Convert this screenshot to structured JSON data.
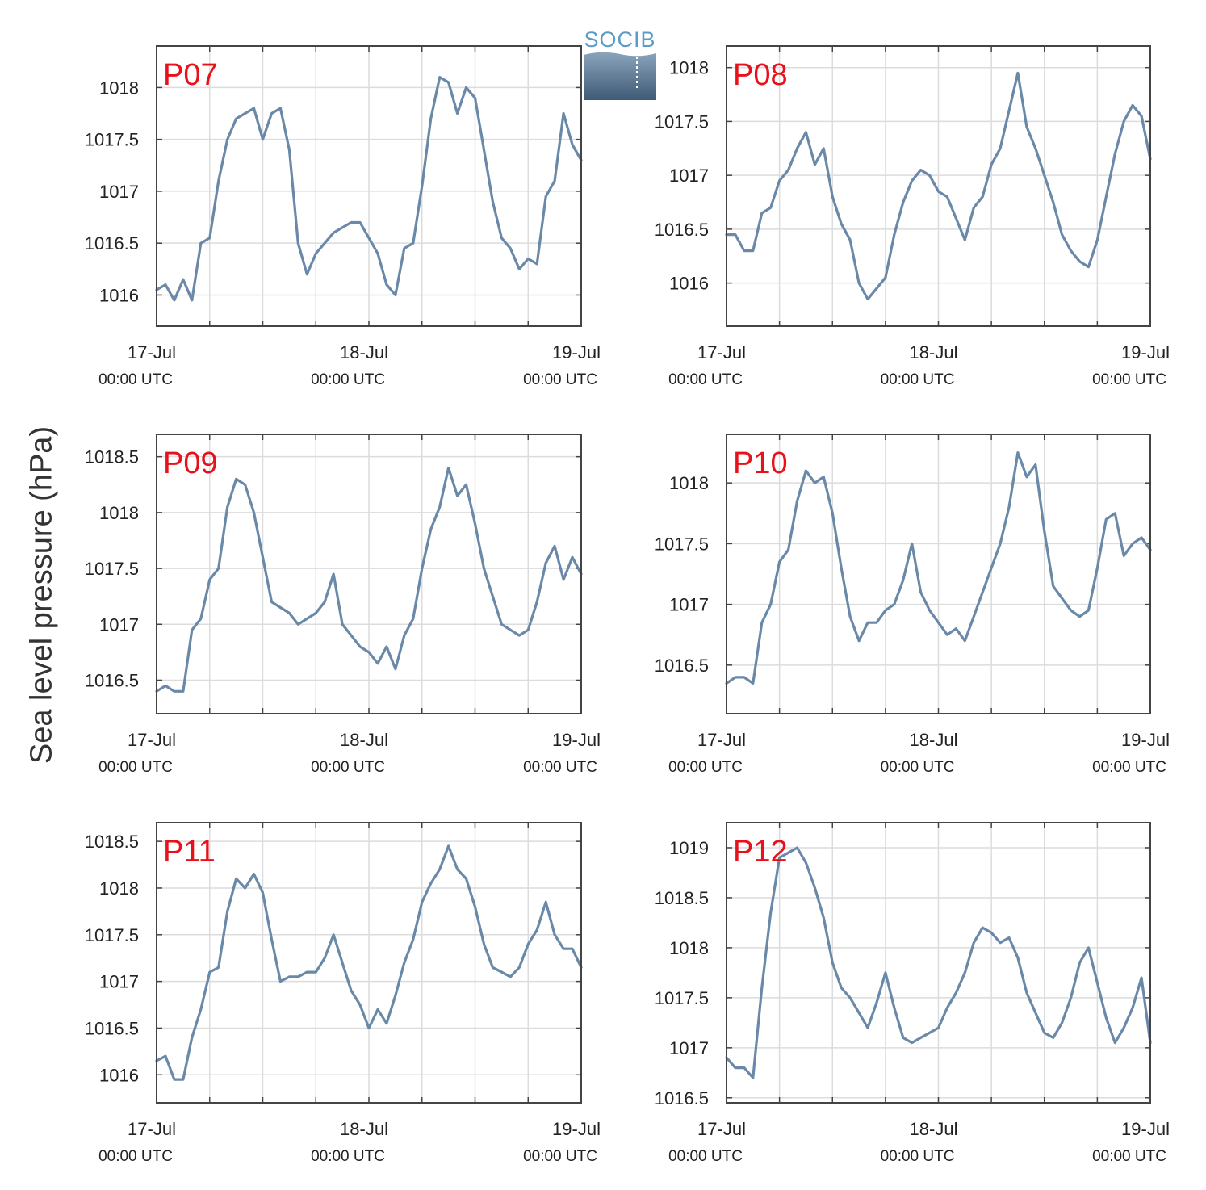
{
  "ylabel": "Sea level pressure (hPa)",
  "logo": {
    "text": "SOCIB"
  },
  "colors": {
    "line": "#6a89a8",
    "title": "#e8101a",
    "grid": "#dcdcdc",
    "frame": "#444444"
  },
  "chart_data": [
    {
      "type": "line",
      "title": "P07",
      "x_tick_labels": [
        [
          "17-Jul",
          "00:00 UTC"
        ],
        [
          "18-Jul",
          "00:00 UTC"
        ],
        [
          "19-Jul",
          "00:00 UTC"
        ]
      ],
      "x_hours": [
        0,
        1,
        2,
        3,
        4,
        5,
        6,
        7,
        8,
        9,
        10,
        11,
        12,
        13,
        14,
        15,
        16,
        17,
        18,
        19,
        20,
        21,
        22,
        23,
        24,
        25,
        26,
        27,
        28,
        29,
        30,
        31,
        32,
        33,
        34,
        35,
        36,
        37,
        38,
        39,
        40,
        41,
        42,
        43,
        44,
        45,
        46,
        47,
        48
      ],
      "ylim": [
        1015.7,
        1018.4
      ],
      "yticks": [
        1016,
        1016.5,
        1017,
        1017.5,
        1018
      ],
      "ytick_labels": [
        "1016",
        "1016.5",
        "1017",
        "1017.5",
        "1018"
      ],
      "series": [
        {
          "values": [
            1016.05,
            1016.1,
            1015.95,
            1016.15,
            1015.95,
            1016.5,
            1016.55,
            1017.1,
            1017.5,
            1017.7,
            1017.75,
            1017.8,
            1017.5,
            1017.75,
            1017.8,
            1017.4,
            1016.5,
            1016.2,
            1016.4,
            1016.5,
            1016.6,
            1016.65,
            1016.7,
            1016.7,
            1016.55,
            1016.4,
            1016.1,
            1016.0,
            1016.45,
            1016.5,
            1017.05,
            1017.7,
            1018.1,
            1018.05,
            1017.75,
            1018.0,
            1017.9,
            1017.4,
            1016.9,
            1016.55,
            1016.45,
            1016.25,
            1016.35,
            1016.3,
            1016.95,
            1017.1,
            1017.75,
            1017.45,
            1017.3
          ]
        }
      ]
    },
    {
      "type": "line",
      "title": "P08",
      "x_tick_labels": [
        [
          "17-Jul",
          "00:00 UTC"
        ],
        [
          "18-Jul",
          "00:00 UTC"
        ],
        [
          "19-Jul",
          "00:00 UTC"
        ]
      ],
      "x_hours": [
        0,
        1,
        2,
        3,
        4,
        5,
        6,
        7,
        8,
        9,
        10,
        11,
        12,
        13,
        14,
        15,
        16,
        17,
        18,
        19,
        20,
        21,
        22,
        23,
        24,
        25,
        26,
        27,
        28,
        29,
        30,
        31,
        32,
        33,
        34,
        35,
        36,
        37,
        38,
        39,
        40,
        41,
        42,
        43,
        44,
        45,
        46,
        47,
        48
      ],
      "ylim": [
        1015.6,
        1018.2
      ],
      "yticks": [
        1016,
        1016.5,
        1017,
        1017.5,
        1018
      ],
      "ytick_labels": [
        "1016",
        "1016.5",
        "1017",
        "1017.5",
        "1018"
      ],
      "series": [
        {
          "values": [
            1016.45,
            1016.45,
            1016.3,
            1016.3,
            1016.65,
            1016.7,
            1016.95,
            1017.05,
            1017.25,
            1017.4,
            1017.1,
            1017.25,
            1016.8,
            1016.55,
            1016.4,
            1016.0,
            1015.85,
            1015.95,
            1016.05,
            1016.45,
            1016.75,
            1016.95,
            1017.05,
            1017.0,
            1016.85,
            1016.8,
            1016.6,
            1016.4,
            1016.7,
            1016.8,
            1017.1,
            1017.25,
            1017.6,
            1017.95,
            1017.45,
            1017.25,
            1017.0,
            1016.75,
            1016.45,
            1016.3,
            1016.2,
            1016.15,
            1016.4,
            1016.8,
            1017.2,
            1017.5,
            1017.65,
            1017.55,
            1017.15
          ]
        }
      ]
    },
    {
      "type": "line",
      "title": "P09",
      "x_tick_labels": [
        [
          "17-Jul",
          "00:00 UTC"
        ],
        [
          "18-Jul",
          "00:00 UTC"
        ],
        [
          "19-Jul",
          "00:00 UTC"
        ]
      ],
      "x_hours": [
        0,
        1,
        2,
        3,
        4,
        5,
        6,
        7,
        8,
        9,
        10,
        11,
        12,
        13,
        14,
        15,
        16,
        17,
        18,
        19,
        20,
        21,
        22,
        23,
        24,
        25,
        26,
        27,
        28,
        29,
        30,
        31,
        32,
        33,
        34,
        35,
        36,
        37,
        38,
        39,
        40,
        41,
        42,
        43,
        44,
        45,
        46,
        47,
        48
      ],
      "ylim": [
        1016.2,
        1018.7
      ],
      "yticks": [
        1016.5,
        1017,
        1017.5,
        1018,
        1018.5
      ],
      "ytick_labels": [
        "1016.5",
        "1017",
        "1017.5",
        "1018",
        "1018.5"
      ],
      "series": [
        {
          "values": [
            1016.4,
            1016.45,
            1016.4,
            1016.4,
            1016.95,
            1017.05,
            1017.4,
            1017.5,
            1018.05,
            1018.3,
            1018.25,
            1018.0,
            1017.6,
            1017.2,
            1017.15,
            1017.1,
            1017.0,
            1017.05,
            1017.1,
            1017.2,
            1017.45,
            1017.0,
            1016.9,
            1016.8,
            1016.75,
            1016.65,
            1016.8,
            1016.6,
            1016.9,
            1017.05,
            1017.5,
            1017.85,
            1018.05,
            1018.4,
            1018.15,
            1018.25,
            1017.9,
            1017.5,
            1017.25,
            1017.0,
            1016.95,
            1016.9,
            1016.95,
            1017.2,
            1017.55,
            1017.7,
            1017.4,
            1017.6,
            1017.45
          ]
        }
      ]
    },
    {
      "type": "line",
      "title": "P10",
      "x_tick_labels": [
        [
          "17-Jul",
          "00:00 UTC"
        ],
        [
          "18-Jul",
          "00:00 UTC"
        ],
        [
          "19-Jul",
          "00:00 UTC"
        ]
      ],
      "x_hours": [
        0,
        1,
        2,
        3,
        4,
        5,
        6,
        7,
        8,
        9,
        10,
        11,
        12,
        13,
        14,
        15,
        16,
        17,
        18,
        19,
        20,
        21,
        22,
        23,
        24,
        25,
        26,
        27,
        28,
        29,
        30,
        31,
        32,
        33,
        34,
        35,
        36,
        37,
        38,
        39,
        40,
        41,
        42,
        43,
        44,
        45,
        46,
        47,
        48
      ],
      "ylim": [
        1016.1,
        1018.4
      ],
      "yticks": [
        1016.5,
        1017,
        1017.5,
        1018
      ],
      "ytick_labels": [
        "1016.5",
        "1017",
        "1017.5",
        "1018"
      ],
      "series": [
        {
          "values": [
            1016.35,
            1016.4,
            1016.4,
            1016.35,
            1016.85,
            1017.0,
            1017.35,
            1017.45,
            1017.85,
            1018.1,
            1018.0,
            1018.05,
            1017.75,
            1017.3,
            1016.9,
            1016.7,
            1016.85,
            1016.85,
            1016.95,
            1017.0,
            1017.2,
            1017.5,
            1017.1,
            1016.95,
            1016.85,
            1016.75,
            1016.8,
            1016.7,
            1016.9,
            1017.1,
            1017.3,
            1017.5,
            1017.8,
            1018.25,
            1018.05,
            1018.15,
            1017.6,
            1017.15,
            1017.05,
            1016.95,
            1016.9,
            1016.95,
            1017.3,
            1017.7,
            1017.75,
            1017.4,
            1017.5,
            1017.55,
            1017.45
          ]
        }
      ]
    },
    {
      "type": "line",
      "title": "P11",
      "x_tick_labels": [
        [
          "17-Jul",
          "00:00 UTC"
        ],
        [
          "18-Jul",
          "00:00 UTC"
        ],
        [
          "19-Jul",
          "00:00 UTC"
        ]
      ],
      "x_hours": [
        0,
        1,
        2,
        3,
        4,
        5,
        6,
        7,
        8,
        9,
        10,
        11,
        12,
        13,
        14,
        15,
        16,
        17,
        18,
        19,
        20,
        21,
        22,
        23,
        24,
        25,
        26,
        27,
        28,
        29,
        30,
        31,
        32,
        33,
        34,
        35,
        36,
        37,
        38,
        39,
        40,
        41,
        42,
        43,
        44,
        45,
        46,
        47,
        48
      ],
      "ylim": [
        1015.7,
        1018.7
      ],
      "yticks": [
        1016,
        1016.5,
        1017,
        1017.5,
        1018,
        1018.5
      ],
      "ytick_labels": [
        "1016",
        "1016.5",
        "1017",
        "1017.5",
        "1018",
        "1018.5"
      ],
      "series": [
        {
          "values": [
            1016.15,
            1016.2,
            1015.95,
            1015.95,
            1016.4,
            1016.7,
            1017.1,
            1017.15,
            1017.75,
            1018.1,
            1018.0,
            1018.15,
            1017.95,
            1017.45,
            1017.0,
            1017.05,
            1017.05,
            1017.1,
            1017.1,
            1017.25,
            1017.5,
            1017.2,
            1016.9,
            1016.75,
            1016.5,
            1016.7,
            1016.55,
            1016.85,
            1017.2,
            1017.45,
            1017.85,
            1018.05,
            1018.2,
            1018.45,
            1018.2,
            1018.1,
            1017.8,
            1017.4,
            1017.15,
            1017.1,
            1017.05,
            1017.15,
            1017.4,
            1017.55,
            1017.85,
            1017.5,
            1017.35,
            1017.35,
            1017.15
          ]
        }
      ]
    },
    {
      "type": "line",
      "title": "P12",
      "x_tick_labels": [
        [
          "17-Jul",
          "00:00 UTC"
        ],
        [
          "18-Jul",
          "00:00 UTC"
        ],
        [
          "19-Jul",
          "00:00 UTC"
        ]
      ],
      "x_hours": [
        0,
        1,
        2,
        3,
        4,
        5,
        6,
        7,
        8,
        9,
        10,
        11,
        12,
        13,
        14,
        15,
        16,
        17,
        18,
        19,
        20,
        21,
        22,
        23,
        24,
        25,
        26,
        27,
        28,
        29,
        30,
        31,
        32,
        33,
        34,
        35,
        36,
        37,
        38,
        39,
        40,
        41,
        42,
        43,
        44,
        45,
        46,
        47,
        48
      ],
      "ylim": [
        1016.45,
        1019.25
      ],
      "yticks": [
        1016.5,
        1017,
        1017.5,
        1018,
        1018.5,
        1019
      ],
      "ytick_labels": [
        "1016.5",
        "1017",
        "1017.5",
        "1018",
        "1018.5",
        "1019"
      ],
      "series": [
        {
          "values": [
            1016.9,
            1016.8,
            1016.8,
            1016.7,
            1017.6,
            1018.35,
            1018.9,
            1018.95,
            1019.0,
            1018.85,
            1018.6,
            1018.3,
            1017.85,
            1017.6,
            1017.5,
            1017.35,
            1017.2,
            1017.45,
            1017.75,
            1017.4,
            1017.1,
            1017.05,
            1017.1,
            1017.15,
            1017.2,
            1017.4,
            1017.55,
            1017.75,
            1018.05,
            1018.2,
            1018.15,
            1018.05,
            1018.1,
            1017.9,
            1017.55,
            1017.35,
            1017.15,
            1017.1,
            1017.25,
            1017.5,
            1017.85,
            1018.0,
            1017.65,
            1017.3,
            1017.05,
            1017.2,
            1017.4,
            1017.7,
            1017.05
          ]
        }
      ]
    }
  ]
}
